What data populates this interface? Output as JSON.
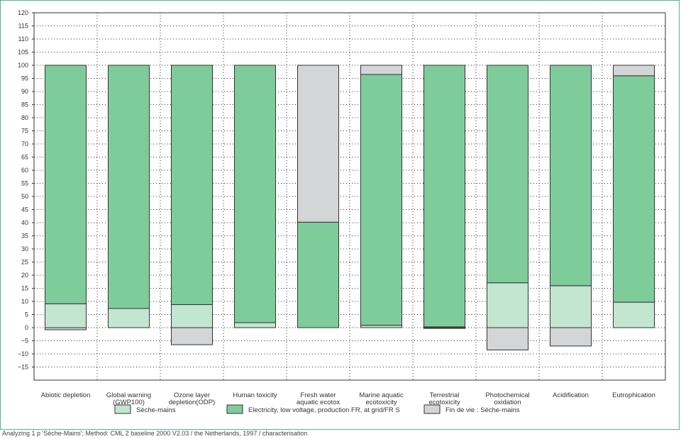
{
  "chart_data": {
    "type": "bar",
    "stacked": true,
    "title": "",
    "xlabel": "",
    "ylabel": "",
    "ylim": [
      -15,
      120
    ],
    "yticks": [
      120,
      115,
      110,
      105,
      100,
      95,
      90,
      85,
      80,
      75,
      70,
      65,
      60,
      55,
      50,
      45,
      40,
      35,
      30,
      25,
      20,
      15,
      10,
      5,
      0,
      -5,
      -10,
      -15
    ],
    "grid": true,
    "legend_position": "bottom",
    "categories": [
      [
        "Abiotic depletion"
      ],
      [
        "Global warning",
        "(GWP100)"
      ],
      [
        "Ozone layer",
        "depletion(ODP)"
      ],
      [
        "Human toxicity"
      ],
      [
        "Fresh water",
        "aquatic ecotox"
      ],
      [
        "Marine aquatic",
        "ecotoxicity"
      ],
      [
        "Terrestrial",
        "ecotoxicity"
      ],
      [
        "Photochemical",
        "oxidation"
      ],
      [
        "Acidification"
      ],
      [
        "Eutrophication"
      ]
    ],
    "series": [
      {
        "name": "Sèche-mains",
        "color": "#c2e6d0",
        "values": [
          9.1,
          7.3,
          8.8,
          1.9,
          0,
          0.9,
          0.3,
          17.1,
          16.0,
          9.7
        ]
      },
      {
        "name": "Electricity, low voltage, production FR, at grid/FR S",
        "color": "#7fcc9b",
        "values": [
          90.9,
          92.7,
          91.2,
          98.1,
          40.2,
          95.6,
          99.7,
          82.9,
          84.0,
          86.3
        ]
      },
      {
        "name": "Fin de vie : Sèche-mains",
        "color": "#d4d5d7",
        "values": [
          -0.8,
          0,
          -6.5,
          0,
          59.8,
          3.5,
          -0.3,
          -8.5,
          -7.0,
          4.0
        ]
      }
    ]
  },
  "footer": "Analyzing 1 p 'Sèche-Mains';  Method: CML 2 baseline 2000 V2.03 / the Netherlands, 1997 / characterisation"
}
